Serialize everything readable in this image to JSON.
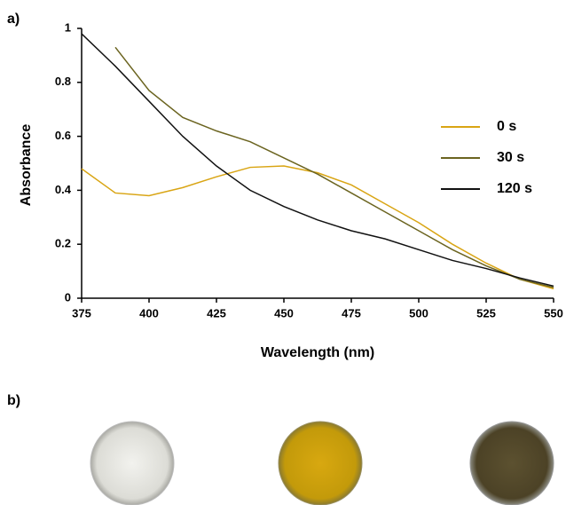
{
  "panel_labels": [
    "a)",
    "b)"
  ],
  "chart_data": {
    "type": "line",
    "y_label": "Absorbance",
    "x_label": "Wavelength (nm)",
    "x": [
      375,
      387.5,
      400,
      412.5,
      425,
      437.5,
      450,
      462.5,
      475,
      487.5,
      500,
      512.5,
      525,
      537.5,
      550
    ],
    "series": [
      {
        "name": "0 s",
        "color": "#d9a514",
        "values": [
          0.48,
          0.39,
          0.38,
          0.41,
          0.45,
          0.485,
          0.49,
          0.465,
          0.42,
          0.35,
          0.28,
          0.2,
          0.13,
          0.07,
          0.035
        ]
      },
      {
        "name": "30 s",
        "color": "#6b6420",
        "values": [
          null,
          0.93,
          0.77,
          0.67,
          0.62,
          0.58,
          0.52,
          0.46,
          0.39,
          0.32,
          0.25,
          0.18,
          0.12,
          0.07,
          0.04
        ]
      },
      {
        "name": "120 s",
        "color": "#111111",
        "values": [
          0.98,
          0.86,
          0.73,
          0.6,
          0.49,
          0.4,
          0.34,
          0.29,
          0.25,
          0.22,
          0.18,
          0.14,
          0.11,
          0.075,
          0.045
        ]
      }
    ],
    "xlim": [
      375,
      550
    ],
    "xticks": [
      375,
      400,
      425,
      450,
      475,
      500,
      525,
      550
    ],
    "ylim": [
      0,
      1
    ],
    "yticks": [
      0,
      0.2,
      0.4,
      0.6,
      0.8,
      1
    ],
    "grid": false,
    "legend": "right"
  }
}
